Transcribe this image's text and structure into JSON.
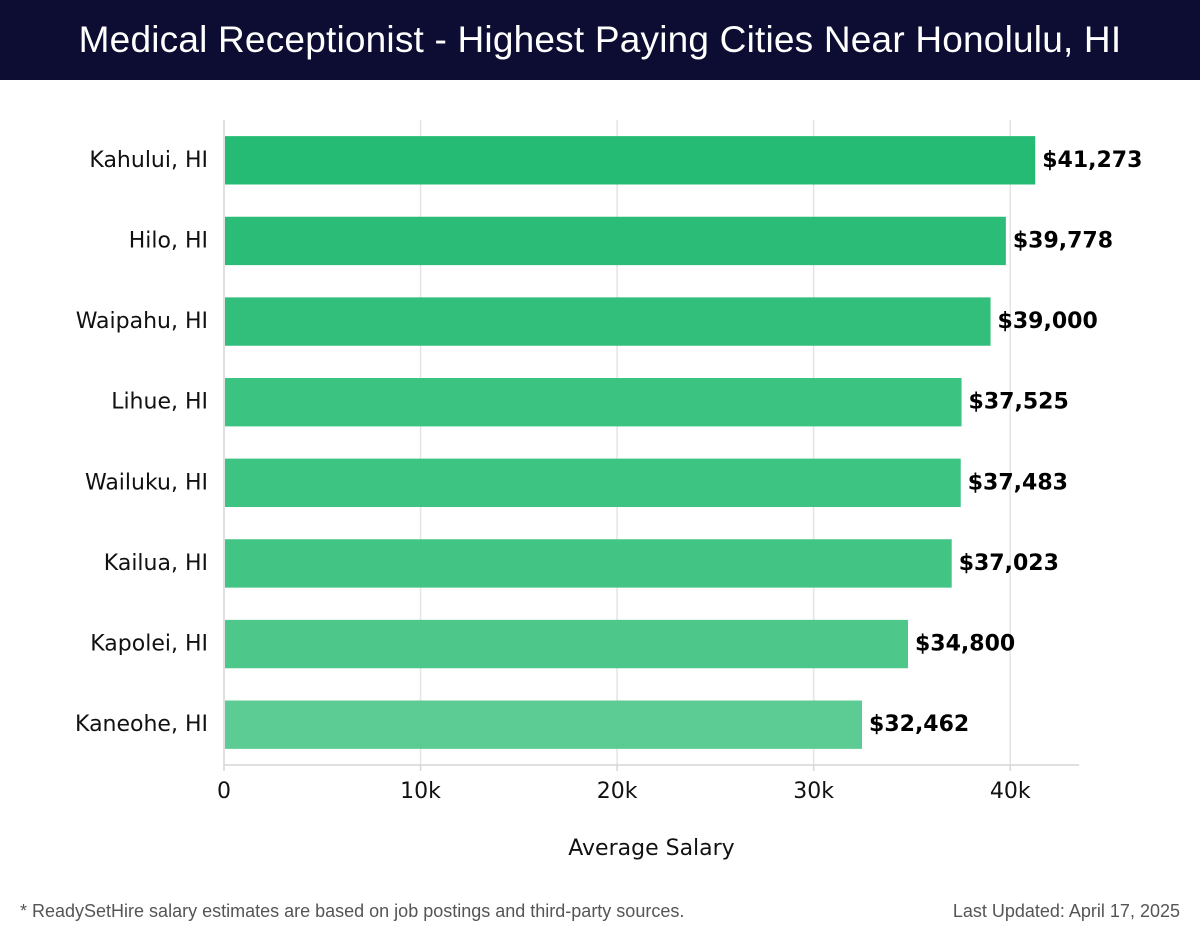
{
  "header": {
    "title": "Medical Receptionist - Highest Paying Cities Near Honolulu, HI"
  },
  "chart_data": {
    "type": "bar",
    "orientation": "horizontal",
    "title": "Medical Receptionist - Highest Paying Cities Near Honolulu, HI",
    "xlabel": "Average Salary",
    "ylabel": "",
    "xlim": [
      0,
      43500
    ],
    "xticks": [
      0,
      10000,
      20000,
      30000,
      40000
    ],
    "xtick_labels": [
      "0",
      "10k",
      "20k",
      "30k",
      "40k"
    ],
    "grid": true,
    "categories": [
      "Kahului, HI",
      "Hilo, HI",
      "Waipahu, HI",
      "Lihue, HI",
      "Wailuku, HI",
      "Kailua, HI",
      "Kapolei, HI",
      "Kaneohe, HI"
    ],
    "values": [
      41273,
      39778,
      39000,
      37525,
      37483,
      37023,
      34800,
      32462
    ],
    "value_labels": [
      "$41,273",
      "$39,778",
      "$39,000",
      "$37,525",
      "$37,483",
      "$37,023",
      "$34,800",
      "$32,462"
    ],
    "bar_colors": [
      "#26bb75",
      "#2bbd78",
      "#31bf7b",
      "#3bc381",
      "#3dc382",
      "#42c484",
      "#4ec78b",
      "#5ccc94"
    ]
  },
  "footer": {
    "note": "* ReadySetHire salary estimates are based on job postings and third-party sources.",
    "updated": "Last Updated: April 17, 2025"
  }
}
